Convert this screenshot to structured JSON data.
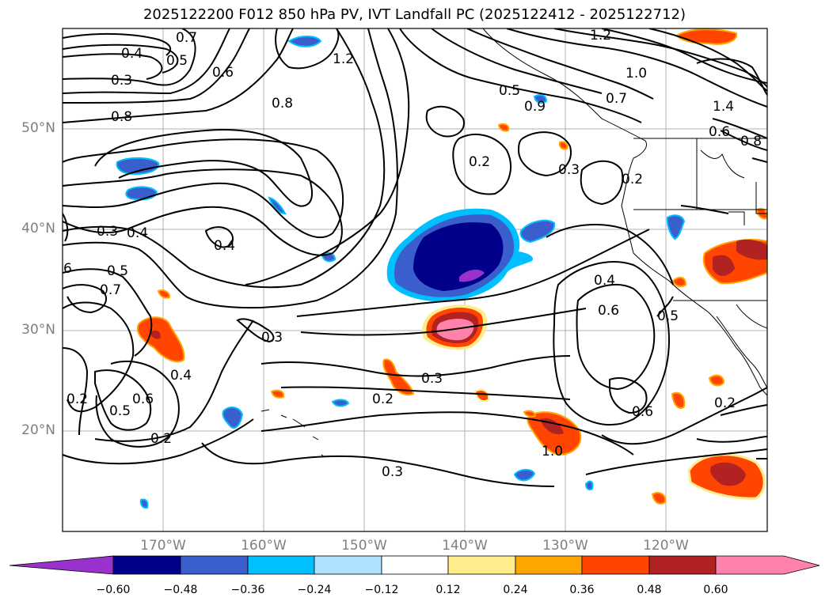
{
  "title": "2025122200 F012 850 hPa PV, IVT Landfall PC (2025122412 - 2025122712)",
  "colors": {
    "background": "#ffffff",
    "gridline": "#b0b0b0",
    "axis_label": "#7f7f7f",
    "contour": "#000000",
    "colorbar_bins": [
      "#9932cc",
      "#00008b",
      "#3a5fcd",
      "#00bfff",
      "#b0e2ff",
      "#ffffff",
      "#ffec8b",
      "#ffa500",
      "#ff4500",
      "#b22222",
      "#ff82ab"
    ]
  },
  "axes": {
    "lat_labels": [
      "50°N",
      "40°N",
      "30°N",
      "20°N"
    ],
    "lon_labels": [
      "170°W",
      "160°W",
      "150°W",
      "140°W",
      "130°W",
      "120°W"
    ]
  },
  "contour_labels": [
    "0.7",
    "0.4",
    "0.5",
    "0.3",
    "0.6",
    "0.8",
    "1.2",
    "0.5",
    "1.2",
    "1.0",
    "0.7",
    "0.9",
    "1.4",
    "0.6",
    "0.8",
    "0.8",
    "0.2",
    "0.3",
    "0.2",
    "0.3",
    "0.4",
    "0.4",
    "6",
    "0.5",
    "0.7",
    "0.3",
    "0.4",
    "0.6",
    "0.5",
    "0.3",
    "0.2",
    "0.5",
    "0.6",
    "0.4",
    "0.2",
    "0.2",
    "0.6",
    "0.2",
    "0.3",
    "1.0"
  ],
  "colorbar": {
    "ticks": [
      "−0.60",
      "−0.48",
      "−0.36",
      "−0.24",
      "−0.12",
      "0.12",
      "0.24",
      "0.36",
      "0.48",
      "0.60"
    ]
  }
}
